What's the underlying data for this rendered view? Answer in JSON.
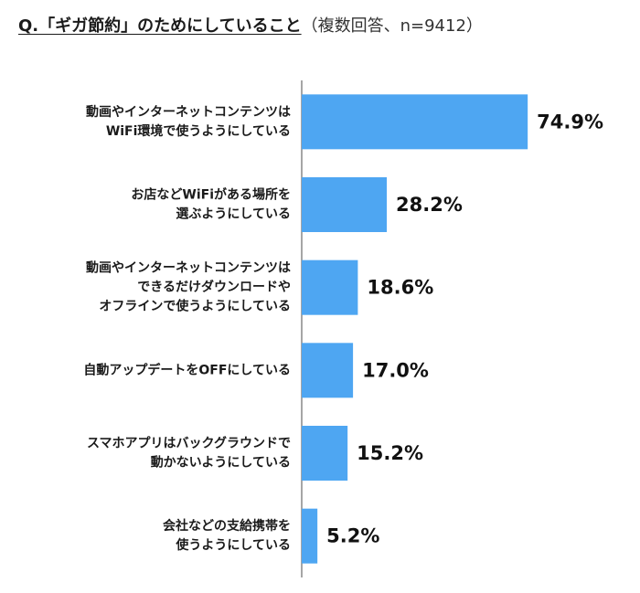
{
  "header": {
    "question": "Q.「ギガ節約」のためにしていること",
    "subtitle": "（複数回答、n=9412）"
  },
  "chart_data": {
    "type": "bar",
    "orientation": "horizontal",
    "title": "Q.「ギガ節約」のためにしていること",
    "subtitle": "（複数回答、n=9412）",
    "unit": "%",
    "categories": [
      [
        "動画やインターネットコンテンツは",
        "WiFi環境で使うようにしている"
      ],
      [
        "お店などWiFiがある場所を",
        "選ぶようにしている"
      ],
      [
        "動画やインターネットコンテンツは",
        "できるだけダウンロードや",
        "オフラインで使うようにしている"
      ],
      [
        "自動アップデートをOFFにしている"
      ],
      [
        "スマホアプリはバックグラウンドで",
        "動かないようにしている"
      ],
      [
        "会社などの支給携帯を",
        "使うようにしている"
      ]
    ],
    "values": [
      74.9,
      28.2,
      18.6,
      17.0,
      15.2,
      5.2
    ],
    "value_labels": [
      "74.9%",
      "28.2%",
      "18.6%",
      "17.0%",
      "15.2%",
      "5.2%"
    ],
    "xlim": [
      0,
      100
    ],
    "grid": false,
    "legend": "none",
    "colors": {
      "bar": "#4ea6f2",
      "axis": "#888888"
    }
  }
}
